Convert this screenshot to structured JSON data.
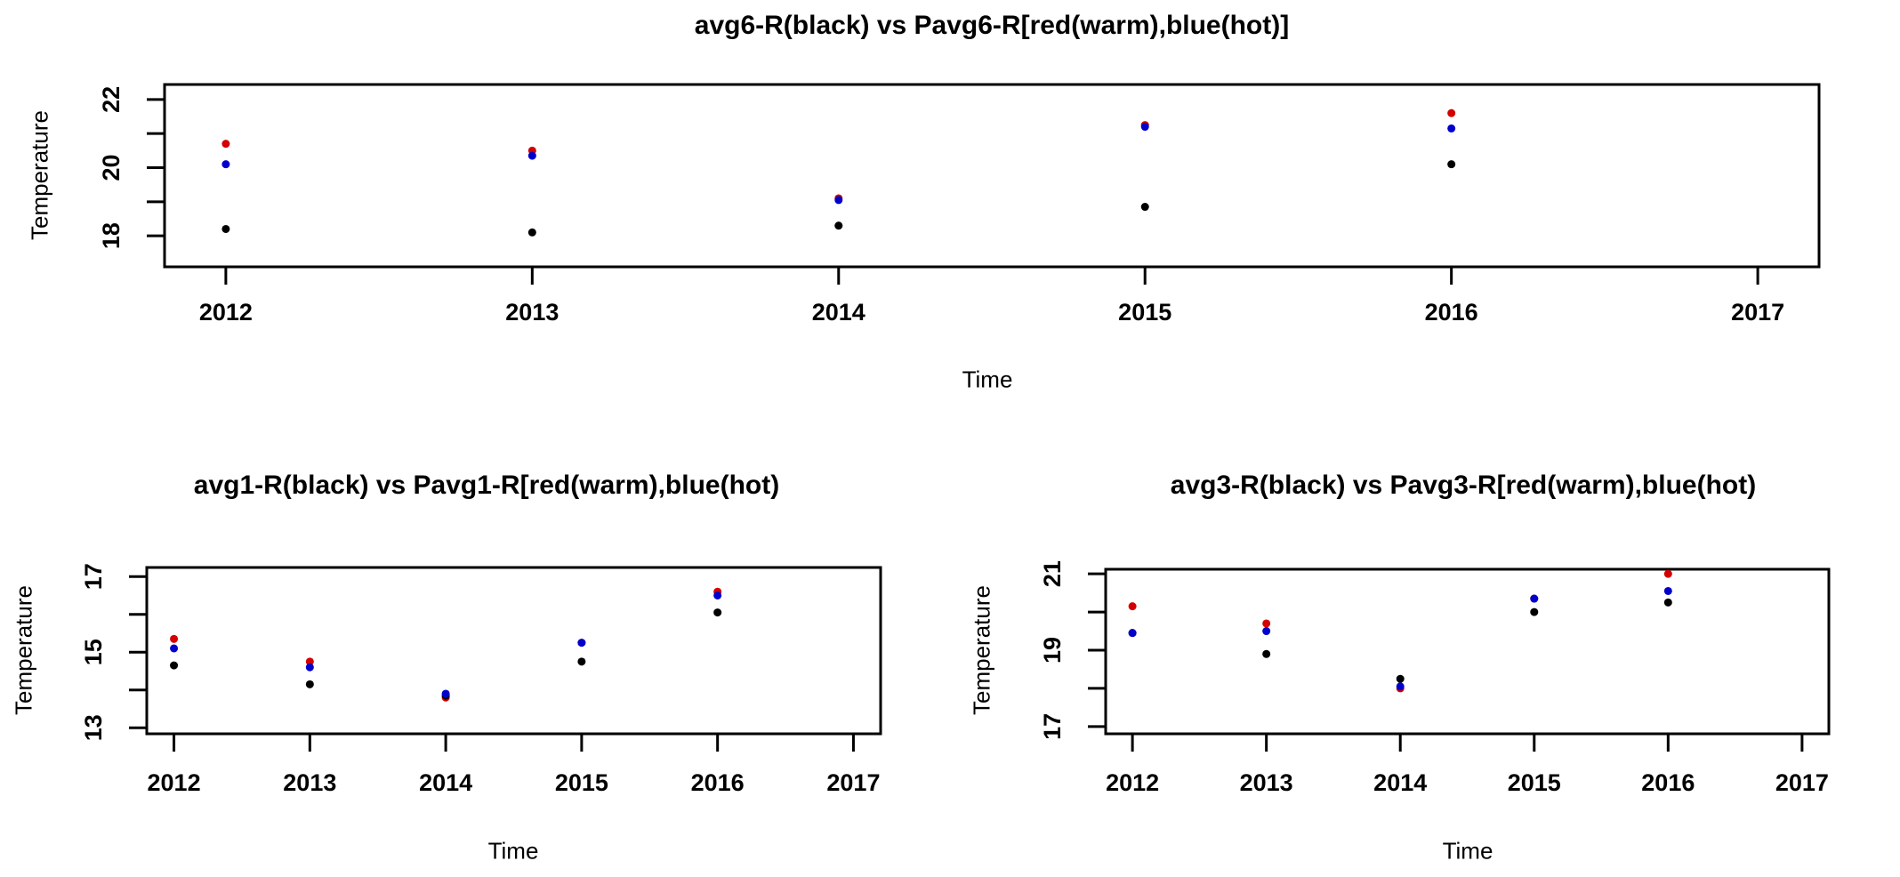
{
  "figure": {
    "background": "#ffffff",
    "text_color": "#000000",
    "frame_color": "#000000",
    "point_colors": {
      "black": "#000000",
      "red": "#d40000",
      "blue": "#0000cc"
    }
  },
  "chart_data": [
    {
      "id": "avg6",
      "type": "scatter",
      "title": "avg6-R(black) vs Pavg6-R[red(warm),blue(hot)]",
      "xlabel": "Time",
      "ylabel": "Temperature",
      "x": [
        2012,
        2013,
        2014,
        2015,
        2016
      ],
      "series": [
        {
          "name": "avg6-R",
          "legend_hint": "black",
          "color": "#000000",
          "values": [
            18.2,
            18.1,
            18.3,
            18.85,
            20.1
          ]
        },
        {
          "name": "Pavg6-R (warm)",
          "legend_hint": "red",
          "color": "#d40000",
          "values": [
            20.7,
            20.5,
            19.1,
            21.25,
            21.6
          ]
        },
        {
          "name": "Pavg6-R (hot)",
          "legend_hint": "blue",
          "color": "#0000cc",
          "values": [
            20.1,
            20.35,
            19.05,
            21.2,
            21.15
          ]
        }
      ],
      "xlim": [
        2011.8,
        2017.2
      ],
      "ylim": [
        17.09,
        22.44
      ],
      "xticks": [
        2012,
        2013,
        2014,
        2015,
        2016,
        2017
      ],
      "xtick_labels": [
        "2012",
        "2013",
        "2014",
        "2015",
        "2016",
        "2017"
      ],
      "yticks": [
        18,
        19,
        20,
        21,
        22
      ],
      "ytick_labels": [
        "18",
        "",
        "20",
        "",
        "22"
      ],
      "grid": false,
      "legend": "none"
    },
    {
      "id": "avg1",
      "type": "scatter",
      "title": "avg1-R(black) vs Pavg1-R[red(warm),blue(hot)",
      "xlabel": "Time",
      "ylabel": "Temperature",
      "x": [
        2012,
        2013,
        2014,
        2015,
        2016
      ],
      "series": [
        {
          "name": "avg1-R",
          "legend_hint": "black",
          "color": "#000000",
          "values": [
            14.65,
            14.15,
            13.85,
            14.75,
            16.05
          ]
        },
        {
          "name": "Pavg1-R (warm)",
          "legend_hint": "red",
          "color": "#d40000",
          "values": [
            15.35,
            14.75,
            13.8,
            15.25,
            16.6
          ]
        },
        {
          "name": "Pavg1-R (hot)",
          "legend_hint": "blue",
          "color": "#0000cc",
          "values": [
            15.1,
            14.6,
            13.9,
            15.25,
            16.5
          ]
        }
      ],
      "xlim": [
        2011.8,
        2017.2
      ],
      "ylim": [
        12.84,
        17.24
      ],
      "xticks": [
        2012,
        2013,
        2014,
        2015,
        2016,
        2017
      ],
      "xtick_labels": [
        "2012",
        "2013",
        "2014",
        "2015",
        "2016",
        "2017"
      ],
      "yticks": [
        13,
        14,
        15,
        16,
        17
      ],
      "ytick_labels": [
        "13",
        "",
        "15",
        "",
        "17"
      ],
      "grid": false,
      "legend": "none"
    },
    {
      "id": "avg3",
      "type": "scatter",
      "title": "avg3-R(black) vs Pavg3-R[red(warm),blue(hot)",
      "xlabel": "Time",
      "ylabel": "Temperature",
      "x": [
        2012,
        2013,
        2014,
        2015,
        2016
      ],
      "series": [
        {
          "name": "avg3-R",
          "legend_hint": "black",
          "color": "#000000",
          "values": [
            19.45,
            18.9,
            18.25,
            20.0,
            20.25
          ]
        },
        {
          "name": "Pavg3-R (warm)",
          "legend_hint": "red",
          "color": "#d40000",
          "values": [
            20.15,
            19.7,
            18.0,
            20.35,
            21.0
          ]
        },
        {
          "name": "Pavg3-R (hot)",
          "legend_hint": "blue",
          "color": "#0000cc",
          "values": [
            19.45,
            19.5,
            18.05,
            20.35,
            20.55
          ]
        }
      ],
      "xlim": [
        2011.8,
        2017.2
      ],
      "ylim": [
        16.81,
        21.12
      ],
      "xticks": [
        2012,
        2013,
        2014,
        2015,
        2016,
        2017
      ],
      "xtick_labels": [
        "2012",
        "2013",
        "2014",
        "2015",
        "2016",
        "2017"
      ],
      "yticks": [
        17,
        18,
        19,
        20,
        21
      ],
      "ytick_labels": [
        "17",
        "",
        "19",
        "",
        "21"
      ],
      "grid": false,
      "legend": "none"
    }
  ]
}
